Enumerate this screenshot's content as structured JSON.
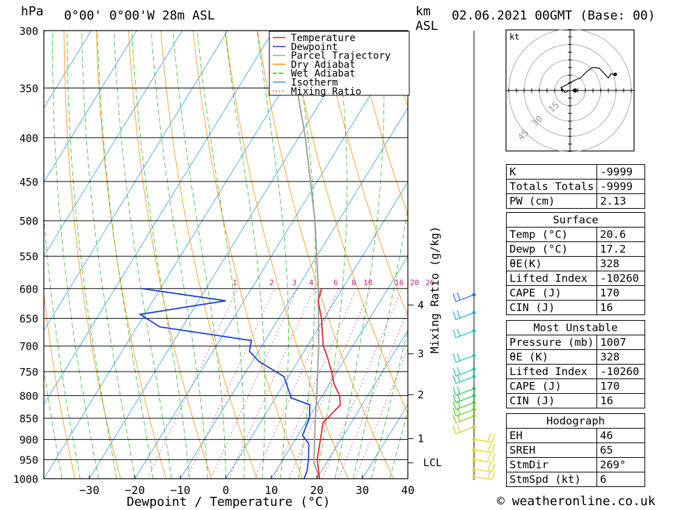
{
  "header": {
    "hpa_label": "hPa",
    "location": "0°00' 0°00'W 28m ASL",
    "km_label": "km",
    "asl_label": "ASL",
    "datetime": "02.06.2021 00GMT (Base: 00)"
  },
  "chart_data": {
    "type": "skewt",
    "xlabel": "Dewpoint / Temperature (°C)",
    "ylabel": "hPa",
    "right_axis_label": "Mixing Ratio (g/kg)",
    "xlim": [
      -40,
      40
    ],
    "ylim": [
      1000,
      300
    ],
    "x_ticks": [
      -30,
      -20,
      -10,
      0,
      10,
      20,
      30,
      40
    ],
    "pressure_levels": [
      300,
      350,
      400,
      450,
      500,
      550,
      600,
      650,
      700,
      750,
      800,
      850,
      900,
      950,
      1000
    ],
    "km_ticks": [
      {
        "label": "4",
        "p": 627
      },
      {
        "label": "3",
        "p": 715
      },
      {
        "label": "2",
        "p": 798
      },
      {
        "label": "1",
        "p": 898
      },
      {
        "label": "LCL",
        "p": 958
      }
    ],
    "mixing_ratio_labels": [
      "1",
      "2",
      "3",
      "4",
      "6",
      "8",
      "10",
      "16",
      "20",
      "25"
    ],
    "legend": [
      {
        "name": "Temperature",
        "color": "#e8202a"
      },
      {
        "name": "Dewpoint",
        "color": "#1f3ddb"
      },
      {
        "name": "Parcel Trajectory",
        "color": "#a0a0a0"
      },
      {
        "name": "Dry Adiabat",
        "color": "#ff8c00"
      },
      {
        "name": "Wet Adiabat",
        "color": "#1fbf1f"
      },
      {
        "name": "Isotherm",
        "color": "#2a9ee8"
      },
      {
        "name": "Mixing Ratio",
        "color": "#d0208a"
      }
    ],
    "temperature": [
      {
        "p": 1000,
        "t": 20.6
      },
      {
        "p": 950,
        "t": 17.5
      },
      {
        "p": 900,
        "t": 15.5
      },
      {
        "p": 860,
        "t": 13.8
      },
      {
        "p": 850,
        "t": 14.2
      },
      {
        "p": 820,
        "t": 15.2
      },
      {
        "p": 800,
        "t": 13.8
      },
      {
        "p": 775,
        "t": 11.0
      },
      {
        "p": 750,
        "t": 8.8
      },
      {
        "p": 720,
        "t": 5.8
      },
      {
        "p": 700,
        "t": 3.5
      },
      {
        "p": 650,
        "t": -0.6
      },
      {
        "p": 620,
        "t": -3.7
      },
      {
        "p": 600,
        "t": -4.6
      }
    ],
    "dewpoint": [
      {
        "p": 1000,
        "t": 17.2
      },
      {
        "p": 980,
        "t": 16.8
      },
      {
        "p": 950,
        "t": 15.6
      },
      {
        "p": 910,
        "t": 13.5
      },
      {
        "p": 890,
        "t": 11.0
      },
      {
        "p": 850,
        "t": 10.2
      },
      {
        "p": 820,
        "t": 8.5
      },
      {
        "p": 805,
        "t": 3.5
      },
      {
        "p": 760,
        "t": -1.0
      },
      {
        "p": 730,
        "t": -8.5
      },
      {
        "p": 710,
        "t": -12.0
      },
      {
        "p": 690,
        "t": -13.0
      },
      {
        "p": 665,
        "t": -35.0
      },
      {
        "p": 643,
        "t": -41.0
      },
      {
        "p": 620,
        "t": -24.0
      },
      {
        "p": 600,
        "t": -44.0
      }
    ],
    "parcel": [
      {
        "p": 1000,
        "t": 20.6
      },
      {
        "p": 958,
        "t": 17.2
      },
      {
        "p": 900,
        "t": 14.2
      },
      {
        "p": 850,
        "t": 11.5
      },
      {
        "p": 800,
        "t": 8.8
      },
      {
        "p": 700,
        "t": 2.5
      },
      {
        "p": 600,
        "t": -5.3
      },
      {
        "p": 500,
        "t": -15.2
      },
      {
        "p": 400,
        "t": -28.5
      },
      {
        "p": 300,
        "t": -47.0
      }
    ]
  },
  "hodograph": {
    "unit_label": "kt",
    "ring_labels": [
      "15",
      "30",
      "45"
    ]
  },
  "indices": {
    "k_label": "K",
    "k_value": "-9999",
    "tt_label": "Totals Totals",
    "tt_value": "-9999",
    "pw_label": "PW (cm)",
    "pw_value": "2.13",
    "surface_header": "Surface",
    "s_temp_label": "Temp (°C)",
    "s_temp_value": "20.6",
    "s_dewp_label": "Dewp (°C)",
    "s_dewp_value": "17.2",
    "s_thetae_label": "θE(K)",
    "s_thetae_value": "328",
    "s_li_label": "Lifted Index",
    "s_li_value": "-10260",
    "s_cape_label": "CAPE (J)",
    "s_cape_value": "170",
    "s_cin_label": "CIN (J)",
    "s_cin_value": "16",
    "mu_header": "Most Unstable",
    "mu_pres_label": "Pressure (mb)",
    "mu_pres_value": "1007",
    "mu_thetae_label": "θE (K)",
    "mu_thetae_value": "328",
    "mu_li_label": "Lifted Index",
    "mu_li_value": "-10260",
    "mu_cape_label": "CAPE (J)",
    "mu_cape_value": "170",
    "mu_cin_label": "CIN (J)",
    "mu_cin_value": "16",
    "hodo_header": "Hodograph",
    "eh_label": "EH",
    "eh_value": "46",
    "sreh_label": "SREH",
    "sreh_value": "65",
    "stmdir_label": "StmDir",
    "stmdir_value": "269°",
    "stmspd_label": "StmSpd (kt)",
    "stmspd_value": "6"
  },
  "footer": {
    "copyright": "© weatheronline.co.uk"
  }
}
